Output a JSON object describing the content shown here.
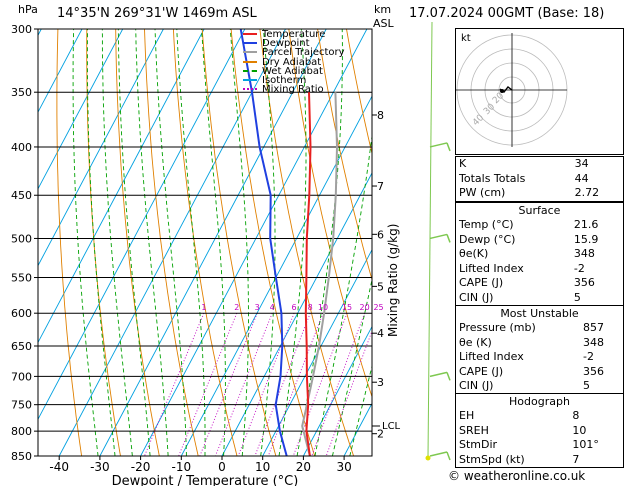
{
  "header": {
    "unit_hpa": "hPa",
    "location": "14°35'N  269°31'W  1469m  ASL",
    "unit_km": "km",
    "unit_asl": "ASL",
    "datetime": "17.07.2024  00GMT  (Base: 18)"
  },
  "legend": [
    {
      "label": "Temperature",
      "color": "#e82020",
      "style": "solid"
    },
    {
      "label": "Dewpoint",
      "color": "#2040e0",
      "style": "solid"
    },
    {
      "label": "Parcel Trajectory",
      "color": "#a0a0a0",
      "style": "solid"
    },
    {
      "label": "Dry Adiabat",
      "color": "#e08000",
      "style": "solid"
    },
    {
      "label": "Wet Adiabat",
      "color": "#00a000",
      "style": "dashed"
    },
    {
      "label": "Isotherm",
      "color": "#00a0e0",
      "style": "solid"
    },
    {
      "label": "Mixing Ratio",
      "color": "#c000c0",
      "style": "dotted"
    }
  ],
  "chart_data": {
    "type": "skew-t",
    "xlabel": "Dewpoint / Temperature (°C)",
    "y_right_label": "Mixing Ratio (g/kg)",
    "pressure_ticks": [
      300,
      350,
      400,
      450,
      500,
      550,
      600,
      650,
      700,
      750,
      800,
      850
    ],
    "temp_ticks": [
      -40,
      -30,
      -20,
      -10,
      0,
      10,
      20,
      30
    ],
    "km_ticks": [
      {
        "km": "8",
        "p": 370
      },
      {
        "km": "7",
        "p": 440
      },
      {
        "km": "6",
        "p": 495
      },
      {
        "km": "5",
        "p": 562
      },
      {
        "km": "4",
        "p": 630
      },
      {
        "km": "3",
        "p": 710
      },
      {
        "km": "2",
        "p": 805
      }
    ],
    "lcl": {
      "label": "LCL",
      "p": 790
    },
    "mixing_ratio_labels": [
      "1",
      "2",
      "3",
      "4",
      "6",
      "8",
      "10",
      "15",
      "20",
      "25"
    ],
    "mixing_ratio_values": [
      1,
      2,
      3,
      4,
      6,
      8,
      10,
      15,
      20,
      25
    ],
    "temperature": [
      {
        "p": 850,
        "t": 21.6
      },
      {
        "p": 800,
        "t": 17.5
      },
      {
        "p": 750,
        "t": 14.5
      },
      {
        "p": 700,
        "t": 10.5
      },
      {
        "p": 650,
        "t": 6.5
      },
      {
        "p": 600,
        "t": 2.0
      },
      {
        "p": 550,
        "t": -2.5
      },
      {
        "p": 500,
        "t": -7.5
      },
      {
        "p": 450,
        "t": -12.5
      },
      {
        "p": 400,
        "t": -18.5
      },
      {
        "p": 350,
        "t": -26.0
      }
    ],
    "dewpoint": [
      {
        "p": 850,
        "t": 15.9
      },
      {
        "p": 800,
        "t": 11.0
      },
      {
        "p": 750,
        "t": 6.5
      },
      {
        "p": 700,
        "t": 4.0
      },
      {
        "p": 650,
        "t": 0.5
      },
      {
        "p": 600,
        "t": -4.0
      },
      {
        "p": 550,
        "t": -10.0
      },
      {
        "p": 500,
        "t": -16.5
      },
      {
        "p": 450,
        "t": -22.0
      },
      {
        "p": 400,
        "t": -31.0
      },
      {
        "p": 350,
        "t": -40.0
      },
      {
        "p": 300,
        "t": -51.0
      }
    ],
    "parcel": [
      {
        "p": 850,
        "t": 21.6
      },
      {
        "p": 790,
        "t": 15.8
      },
      {
        "p": 750,
        "t": 14.2
      },
      {
        "p": 700,
        "t": 12.0
      },
      {
        "p": 650,
        "t": 9.5
      },
      {
        "p": 600,
        "t": 6.5
      },
      {
        "p": 550,
        "t": 3.0
      },
      {
        "p": 500,
        "t": -1.0
      },
      {
        "p": 450,
        "t": -6.0
      },
      {
        "p": 400,
        "t": -12.0
      },
      {
        "p": 350,
        "t": -19.5
      }
    ],
    "wind_barbs": [
      {
        "p": 400
      },
      {
        "p": 500
      },
      {
        "p": 700
      },
      {
        "p": 850
      }
    ]
  },
  "hodograph": {
    "label": "kt",
    "ring_labels": [
      "20",
      "30",
      "40"
    ]
  },
  "indices": [
    {
      "label": "K",
      "value": "34"
    },
    {
      "label": "Totals Totals",
      "value": "44"
    },
    {
      "label": "PW (cm)",
      "value": "2.72"
    }
  ],
  "surface": {
    "title": "Surface",
    "rows": [
      {
        "label": "Temp (°C)",
        "value": "21.6"
      },
      {
        "label": "Dewp (°C)",
        "value": "15.9"
      },
      {
        "label": "θe(K)",
        "value": "348"
      },
      {
        "label": "Lifted Index",
        "value": "-2"
      },
      {
        "label": "CAPE (J)",
        "value": "356"
      },
      {
        "label": "CIN (J)",
        "value": "5"
      }
    ]
  },
  "most_unstable": {
    "title": "Most Unstable",
    "rows": [
      {
        "label": "Pressure (mb)",
        "value": "857"
      },
      {
        "label": "θe (K)",
        "value": "348"
      },
      {
        "label": "Lifted Index",
        "value": "-2"
      },
      {
        "label": "CAPE (J)",
        "value": "356"
      },
      {
        "label": "CIN (J)",
        "value": "5"
      }
    ]
  },
  "hodograph_table": {
    "title": "Hodograph",
    "rows": [
      {
        "label": "EH",
        "value": "8"
      },
      {
        "label": "SREH",
        "value": "10"
      },
      {
        "label": "StmDir",
        "value": "101°"
      },
      {
        "label": "StmSpd (kt)",
        "value": "7"
      }
    ]
  },
  "credit": "© weatheronline.co.uk"
}
